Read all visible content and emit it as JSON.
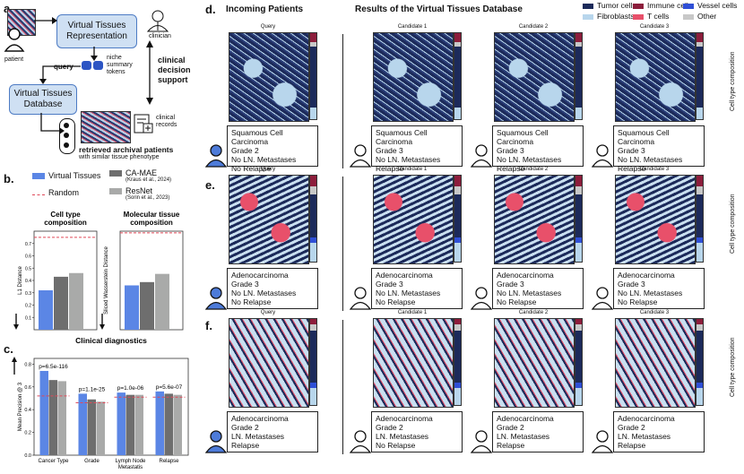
{
  "panel_labels": {
    "a": "a.",
    "b": "b.",
    "c": "c.",
    "d": "d.",
    "e": "e.",
    "f": "f."
  },
  "panel_a": {
    "patient": "patient",
    "vt_representation": "Virtual Tissues Representation",
    "query": "query",
    "niche_tokens": "niche summary tokens",
    "clinician": "clinician",
    "vt_database": "Virtual Tissues Database",
    "clinical_decision_support": "clinical decision support",
    "clinical_records": "clinical records",
    "retrieved": "retrieved archival patients",
    "similar": "with similar tissue phenotype"
  },
  "legend_b": {
    "virtual_tissues": "Virtual Tissues",
    "random": "Random",
    "ca_mae": "CA-MAE",
    "ca_mae_ref": "(Kraus et al., 2024)",
    "resnet": "ResNet",
    "resnet_ref": "(Sorin et al., 2023)"
  },
  "chart_data": [
    {
      "type": "bar",
      "title": "Cell type composition",
      "ylabel": "L1 Distance",
      "ylim": [
        0,
        0.8
      ],
      "yticks": [
        0.1,
        0.2,
        0.3,
        0.4,
        0.5,
        0.6,
        0.7
      ],
      "random_baseline": 0.75,
      "series": [
        {
          "name": "Virtual Tissues",
          "values": [
            0.32
          ]
        },
        {
          "name": "CA-MAE",
          "values": [
            0.43
          ]
        },
        {
          "name": "ResNet",
          "values": [
            0.46
          ]
        }
      ],
      "colors": [
        "#5b86e5",
        "#6e6e6e",
        "#a9aaa9"
      ]
    },
    {
      "type": "bar",
      "title": "Molecular tissue composition",
      "ylabel": "Sliced Wasserstein Distance",
      "ylim": [
        0,
        0.3
      ],
      "random_baseline": 0.295,
      "series": [
        {
          "name": "Virtual Tissues",
          "values": [
            0.135
          ]
        },
        {
          "name": "CA-MAE",
          "values": [
            0.145
          ]
        },
        {
          "name": "ResNet",
          "values": [
            0.17
          ]
        }
      ],
      "colors": [
        "#5b86e5",
        "#6e6e6e",
        "#a9aaa9"
      ]
    },
    {
      "type": "bar",
      "title": "Clinical diagnostics",
      "ylabel": "Mean Precision @ 3",
      "ylim": [
        0,
        0.85
      ],
      "yticks": [
        0.0,
        0.2,
        0.4,
        0.6,
        0.8
      ],
      "categories": [
        "Cancer Type",
        "Grade",
        "Lymph Node Metastatis",
        "Relapse"
      ],
      "pvalues": [
        "p=6.5e-116",
        "p=1.1e-25",
        "p=1.0e-06",
        "p=5.6e-07"
      ],
      "random_baseline": [
        0.52,
        0.46,
        0.51,
        0.51
      ],
      "series": [
        {
          "name": "Virtual Tissues",
          "values": [
            0.74,
            0.54,
            0.55,
            0.56
          ]
        },
        {
          "name": "CA-MAE",
          "values": [
            0.66,
            0.49,
            0.53,
            0.54
          ]
        },
        {
          "name": "ResNet",
          "values": [
            0.65,
            0.47,
            0.53,
            0.53
          ]
        }
      ],
      "colors": [
        "#5b86e5",
        "#6e6e6e",
        "#a9aaa9"
      ]
    }
  ],
  "right": {
    "incoming": "Incoming Patients",
    "results": "Results of the Virtual Tissues Database",
    "legend": [
      {
        "label": "Tumor cells",
        "color": "#1c2a5a"
      },
      {
        "label": "Immune cells",
        "color": "#8c1d3b"
      },
      {
        "label": "Vessel cells",
        "color": "#2f4fd6"
      },
      {
        "label": "Fibroblasts",
        "color": "#b8d6ec"
      },
      {
        "label": "T cells",
        "color": "#e8506a"
      },
      {
        "label": "Other",
        "color": "#c8c8c8"
      }
    ],
    "side_label": "Cell type composition",
    "captions": [
      "Query",
      "Candidate 1",
      "Candidate 2",
      "Candidate 3"
    ],
    "rows": [
      {
        "cards": [
          [
            "Squamous Cell Carcinoma",
            "Grade 2",
            "No LN. Metastases",
            "No Relapse"
          ],
          [
            "Squamous Cell Carcinoma",
            "Grade 3",
            "No LN. Metastases",
            "Relapse"
          ],
          [
            "Squamous Cell Carcinoma",
            "Grade 3",
            "No LN. Metastases",
            "Relapse"
          ],
          [
            "Squamous Cell Carcinoma",
            "Grade 3",
            "No LN. Metastases",
            "Relapse"
          ]
        ]
      },
      {
        "cards": [
          [
            "Adenocarcinoma",
            "Grade 3",
            "No LN. Metastases",
            "No Relapse"
          ],
          [
            "Adenocarcinoma",
            "Grade 3",
            "No LN. Metastases",
            "No Relapse"
          ],
          [
            "Adenocarcinoma",
            "Grade 3",
            "No LN. Metastases",
            "No Relapse"
          ],
          [
            "Adenocarcinoma",
            "Grade 3",
            "No LN. Metastases",
            "No Relapse"
          ]
        ]
      },
      {
        "cards": [
          [
            "Adenocarcinoma",
            "Grade 2",
            "LN. Metastases",
            "Relapse"
          ],
          [
            "Adenocarcinoma",
            "Grade 2",
            "LN. Metastases",
            "No Relapse"
          ],
          [
            "Adenocarcinoma",
            "Grade 2",
            "LN. Metastases",
            "Relapse"
          ],
          [
            "Adenocarcinoma",
            "Grade 2",
            "LN. Metastases",
            "Relapse"
          ]
        ]
      }
    ]
  }
}
